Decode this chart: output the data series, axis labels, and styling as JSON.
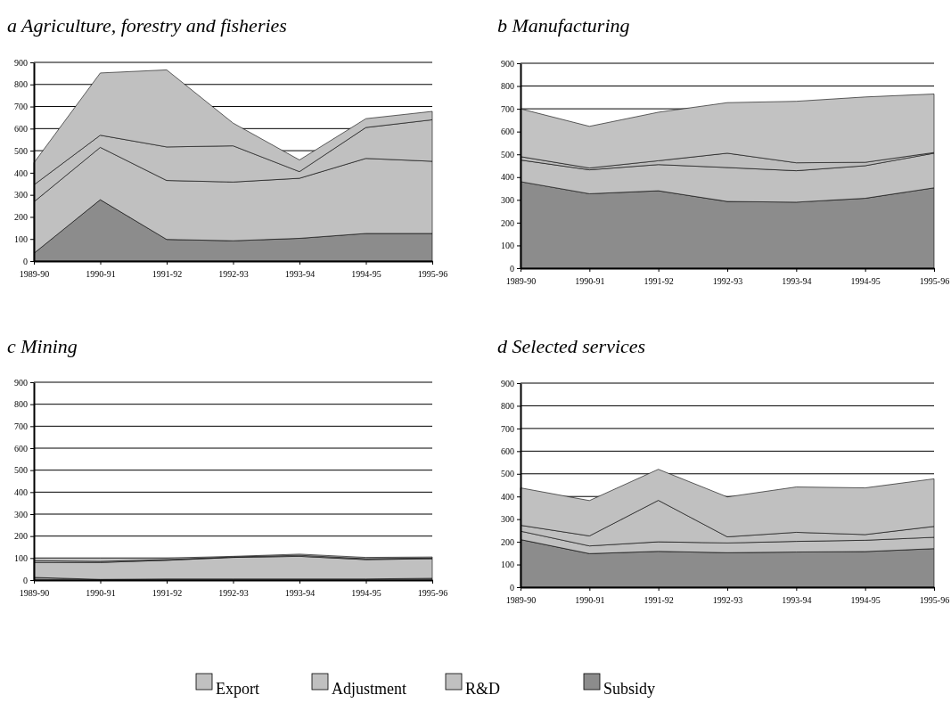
{
  "chart_data": [
    {
      "type": "area",
      "stacked": true,
      "title": "a  Agriculture, forestry and fisheries",
      "categories": [
        "1989-90",
        "1990-91",
        "1991-92",
        "1992-93",
        "1993-94",
        "1994-95",
        "1995-96"
      ],
      "ylim": [
        0,
        900
      ],
      "yticks": [
        0,
        100,
        200,
        300,
        400,
        500,
        600,
        700,
        800,
        900
      ],
      "grid": "y",
      "legend": "bottom",
      "series": [
        {
          "name": "Subsidy",
          "color": "#8c8c8c",
          "values": [
            35,
            278,
            98,
            92,
            103,
            125,
            125
          ]
        },
        {
          "name": "R&D",
          "color": "#c0c0c0",
          "values": [
            233,
            237,
            267,
            266,
            272,
            340,
            327
          ]
        },
        {
          "name": "Adjustment",
          "color": "#c0c0c0",
          "values": [
            77,
            55,
            152,
            164,
            30,
            140,
            188
          ]
        },
        {
          "name": "Export",
          "color": "#c0c0c0",
          "values": [
            100,
            282,
            349,
            103,
            53,
            40,
            38
          ]
        }
      ]
    },
    {
      "type": "area",
      "stacked": true,
      "title": "b  Manufacturing",
      "categories": [
        "1989-90",
        "1990-91",
        "1991-92",
        "1992-93",
        "1993-94",
        "1994-95",
        "1995-96"
      ],
      "ylim": [
        0,
        900
      ],
      "yticks": [
        0,
        100,
        200,
        300,
        400,
        500,
        600,
        700,
        800,
        900
      ],
      "grid": "y",
      "series": [
        {
          "color": "#8c8c8c",
          "values": [
            380,
            327,
            340,
            293,
            290,
            307,
            353
          ]
        },
        {
          "color": "#c0c0c0",
          "values": [
            95,
            105,
            115,
            149,
            138,
            143,
            152
          ]
        },
        {
          "color": "#bebebe",
          "values": [
            15,
            8,
            17,
            63,
            35,
            15,
            3
          ]
        },
        {
          "color": "#c2c2c2",
          "values": [
            210,
            183,
            213,
            222,
            270,
            287,
            257
          ]
        }
      ]
    },
    {
      "type": "area",
      "stacked": true,
      "title": "c  Mining",
      "categories": [
        "1989-90",
        "1990-91",
        "1991-92",
        "1992-93",
        "1993-94",
        "1994-95",
        "1995-96"
      ],
      "ylim": [
        0,
        900
      ],
      "yticks": [
        0,
        100,
        200,
        300,
        400,
        500,
        600,
        700,
        800,
        900
      ],
      "grid": "y",
      "series": [
        {
          "color": "#8c8c8c",
          "values": [
            12,
            3,
            5,
            5,
            5,
            5,
            8
          ]
        },
        {
          "color": "#c0c0c0",
          "values": [
            68,
            77,
            85,
            98,
            103,
            88,
            89
          ]
        },
        {
          "color": "#bebebe",
          "values": [
            8,
            5,
            3,
            2,
            5,
            4,
            3
          ]
        },
        {
          "color": "#c2c2c2",
          "values": [
            12,
            15,
            7,
            3,
            5,
            6,
            5
          ]
        }
      ]
    },
    {
      "type": "area",
      "stacked": true,
      "title": "d  Selected services",
      "categories": [
        "1989-90",
        "1990-91",
        "1991-92",
        "1992-93",
        "1993-94",
        "1994-95",
        "1995-96"
      ],
      "ylim": [
        0,
        900
      ],
      "yticks": [
        0,
        100,
        200,
        300,
        400,
        500,
        600,
        700,
        800,
        900
      ],
      "grid": "y",
      "series": [
        {
          "color": "#8c8c8c",
          "values": [
            210,
            148,
            158,
            152,
            155,
            157,
            170
          ]
        },
        {
          "color": "#c0c0c0",
          "values": [
            37,
            34,
            42,
            43,
            47,
            50,
            50
          ]
        },
        {
          "color": "#c0c0c0",
          "values": [
            26,
            44,
            183,
            27,
            40,
            25,
            48
          ]
        },
        {
          "color": "#c0c0c0",
          "values": [
            165,
            156,
            137,
            176,
            200,
            206,
            210
          ]
        }
      ]
    }
  ]
}
